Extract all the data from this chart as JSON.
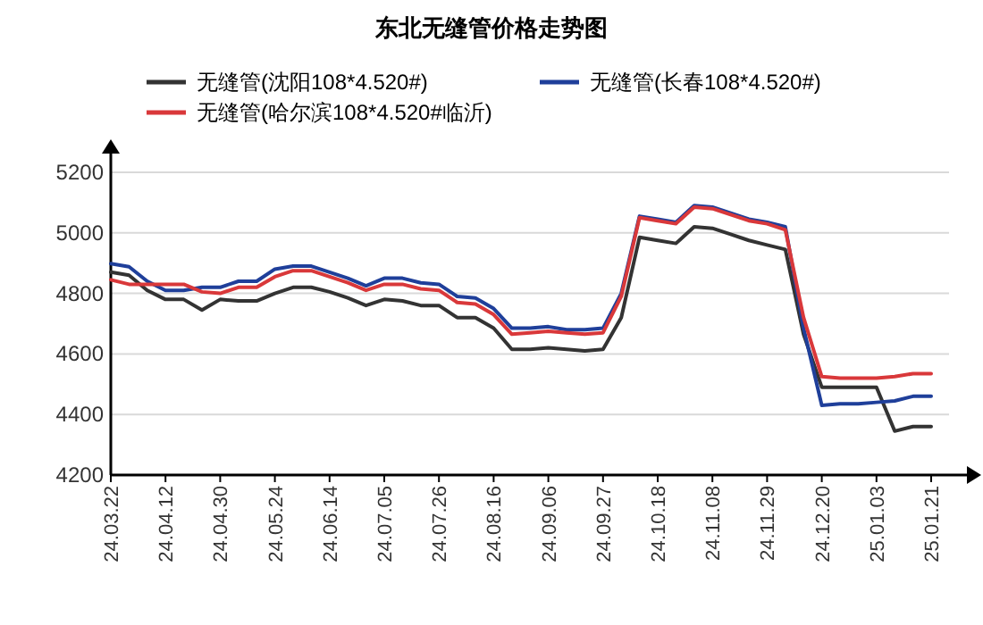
{
  "chart_data": {
    "type": "line",
    "title": "东北无缝管价格走势图",
    "categories": [
      "24.03.22",
      null,
      null,
      "24.04.12",
      null,
      null,
      "24.04.30",
      null,
      null,
      "24.05.24",
      null,
      null,
      "24.06.14",
      null,
      null,
      "24.07.05",
      null,
      null,
      "24.07.26",
      null,
      null,
      "24.08.16",
      null,
      null,
      "24.09.06",
      null,
      null,
      "24.09.27",
      null,
      null,
      "24.10.18",
      null,
      null,
      "24.11.08",
      null,
      null,
      "24.11.29",
      null,
      null,
      "24.12.20",
      null,
      null,
      "25.01.03",
      null,
      null,
      "25.01.21"
    ],
    "series": [
      {
        "name": "无缝管(沈阳108*4.520#)",
        "color": "#333333",
        "values": [
          4870,
          4860,
          4810,
          4780,
          4780,
          4745,
          4780,
          4775,
          4775,
          4800,
          4820,
          4820,
          4805,
          4785,
          4760,
          4780,
          4775,
          4760,
          4760,
          4720,
          4720,
          4685,
          4615,
          4615,
          4620,
          4615,
          4610,
          4615,
          4720,
          4985,
          4975,
          4965,
          5020,
          5015,
          4995,
          4975,
          4960,
          4945,
          4665,
          4490,
          4490,
          4490,
          4490,
          4345,
          4360,
          4360
        ]
      },
      {
        "name": "无缝管(长春108*4.520#)",
        "color": "#1f3f9a",
        "values": [
          4898,
          4888,
          4840,
          4810,
          4810,
          4820,
          4820,
          4840,
          4840,
          4880,
          4890,
          4890,
          4870,
          4850,
          4825,
          4850,
          4850,
          4835,
          4830,
          4790,
          4785,
          4750,
          4685,
          4685,
          4690,
          4680,
          4680,
          4685,
          4800,
          5055,
          5045,
          5035,
          5090,
          5085,
          5065,
          5045,
          5035,
          5020,
          4685,
          4430,
          4435,
          4435,
          4440,
          4445,
          4460,
          4460
        ]
      },
      {
        "name": "无缝管(哈尔滨108*4.520#临沂)",
        "color": "#d9383a",
        "values": [
          4845,
          4830,
          4830,
          4830,
          4830,
          4805,
          4800,
          4820,
          4820,
          4855,
          4875,
          4875,
          4855,
          4835,
          4810,
          4830,
          4830,
          4815,
          4810,
          4770,
          4765,
          4730,
          4665,
          4670,
          4675,
          4670,
          4665,
          4670,
          4790,
          5050,
          5040,
          5030,
          5085,
          5080,
          5060,
          5040,
          5030,
          5010,
          4720,
          4525,
          4520,
          4520,
          4520,
          4525,
          4535,
          4535
        ]
      }
    ],
    "ylim": [
      4200,
      5250
    ],
    "yticks": [
      4200,
      4400,
      4600,
      4800,
      5000,
      5200
    ],
    "grid": "y",
    "legend": "top",
    "marker": "none",
    "line_style": "solid"
  }
}
